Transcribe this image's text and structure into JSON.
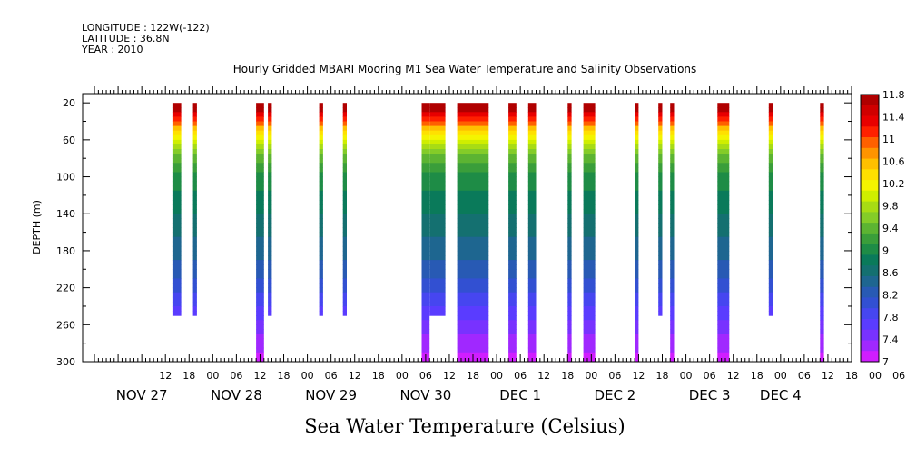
{
  "header": {
    "longitude": "LONGITUDE : 122W(-122)",
    "latitude": "LATITUDE : 36.8N",
    "year": "YEAR : 2010"
  },
  "chart_data": {
    "type": "heatmap",
    "title": "Hourly Gridded MBARI Mooring M1 Sea Water Temperature and Salinity Observations",
    "ylabel": "DEPTH (m)",
    "xlabel": "Sea Water Temperature (Celsius)",
    "x_unit": "hours since 00Z NOV 27 2010",
    "xlim": [
      -9,
      186
    ],
    "ylim": [
      300,
      10
    ],
    "y_ticks": [
      20,
      60,
      100,
      140,
      180,
      220,
      260,
      300
    ],
    "x_hour_labels": [
      {
        "h": 12,
        "t": "12"
      },
      {
        "h": 18,
        "t": "18"
      },
      {
        "h": 24,
        "t": "00"
      },
      {
        "h": 30,
        "t": "06"
      },
      {
        "h": 36,
        "t": "12"
      },
      {
        "h": 42,
        "t": "18"
      },
      {
        "h": 48,
        "t": "00"
      },
      {
        "h": 54,
        "t": "06"
      },
      {
        "h": 60,
        "t": "12"
      },
      {
        "h": 66,
        "t": "18"
      },
      {
        "h": 72,
        "t": "00"
      },
      {
        "h": 78,
        "t": "06"
      },
      {
        "h": 84,
        "t": "12"
      },
      {
        "h": 90,
        "t": "18"
      },
      {
        "h": 96,
        "t": "00"
      },
      {
        "h": 102,
        "t": "06"
      },
      {
        "h": 108,
        "t": "12"
      },
      {
        "h": 114,
        "t": "18"
      },
      {
        "h": 120,
        "t": "00"
      },
      {
        "h": 126,
        "t": "06"
      },
      {
        "h": 132,
        "t": "12"
      },
      {
        "h": 138,
        "t": "18"
      },
      {
        "h": 144,
        "t": "00"
      },
      {
        "h": 150,
        "t": "06"
      },
      {
        "h": 156,
        "t": "12"
      },
      {
        "h": 162,
        "t": "18"
      },
      {
        "h": 168,
        "t": "00"
      },
      {
        "h": 174,
        "t": "06"
      },
      {
        "h": 180,
        "t": "12"
      },
      {
        "h": 186,
        "t": "18"
      },
      {
        "h": 192,
        "t": "00"
      },
      {
        "h": 198,
        "t": "06"
      }
    ],
    "x_day_labels": [
      {
        "h": 6,
        "t": "NOV 27"
      },
      {
        "h": 30,
        "t": "NOV 28"
      },
      {
        "h": 54,
        "t": "NOV 29"
      },
      {
        "h": 78,
        "t": "NOV 30"
      },
      {
        "h": 102,
        "t": "DEC  1"
      },
      {
        "h": 126,
        "t": "DEC  2"
      },
      {
        "h": 150,
        "t": "DEC  3"
      },
      {
        "h": 168,
        "t": "DEC  4"
      }
    ],
    "legend_levels": [
      "11.8",
      "11.4",
      "11",
      "10.6",
      "10.2",
      "9.8",
      "9.4",
      "9",
      "8.6",
      "8.2",
      "7.8",
      "7.4",
      "7"
    ],
    "colors": [
      "#b00000",
      "#d00000",
      "#e80000",
      "#ff2000",
      "#ff6000",
      "#ff9400",
      "#ffc000",
      "#ffe000",
      "#f4f400",
      "#cfee00",
      "#a8dc14",
      "#84cc28",
      "#5cb432",
      "#3a9e3a",
      "#1e8c46",
      "#0a7a5a",
      "#147070",
      "#1e6690",
      "#285ab4",
      "#3250d2",
      "#4646f0",
      "#5a3cff",
      "#7832ff",
      "#a028ff",
      "#d01eff"
    ],
    "color_levels_min": 7,
    "color_levels_step": 0.2,
    "profile_depth": [
      20,
      40,
      60,
      80,
      100,
      120,
      140,
      160,
      180,
      200,
      220,
      240,
      260,
      280,
      300
    ],
    "profile_temp": [
      12.2,
      11.2,
      10.1,
      9.5,
      9.15,
      8.95,
      8.8,
      8.65,
      8.5,
      8.3,
      8.05,
      7.8,
      7.5,
      7.3,
      7.1
    ],
    "bars": [
      {
        "h0": 14,
        "h1": 16,
        "bottom": 250
      },
      {
        "h0": 19,
        "h1": 20,
        "bottom": 250
      },
      {
        "h0": 35,
        "h1": 37,
        "bottom": 300
      },
      {
        "h0": 38,
        "h1": 39,
        "bottom": 250
      },
      {
        "h0": 51,
        "h1": 52,
        "bottom": 250
      },
      {
        "h0": 57,
        "h1": 58,
        "bottom": 250
      },
      {
        "h0": 77,
        "h1": 79,
        "bottom": 300
      },
      {
        "h0": 79,
        "h1": 83,
        "bottom": 250
      },
      {
        "h0": 86,
        "h1": 94,
        "bottom": 300
      },
      {
        "h0": 99,
        "h1": 101,
        "bottom": 300
      },
      {
        "h0": 104,
        "h1": 106,
        "bottom": 300
      },
      {
        "h0": 114,
        "h1": 115,
        "bottom": 300
      },
      {
        "h0": 118,
        "h1": 121,
        "bottom": 300
      },
      {
        "h0": 131,
        "h1": 132,
        "bottom": 300
      },
      {
        "h0": 137,
        "h1": 138,
        "bottom": 250
      },
      {
        "h0": 140,
        "h1": 141,
        "bottom": 300
      },
      {
        "h0": 152,
        "h1": 155,
        "bottom": 300
      },
      {
        "h0": 165,
        "h1": 166,
        "bottom": 250
      },
      {
        "h0": 178,
        "h1": 179,
        "bottom": 300
      }
    ]
  }
}
